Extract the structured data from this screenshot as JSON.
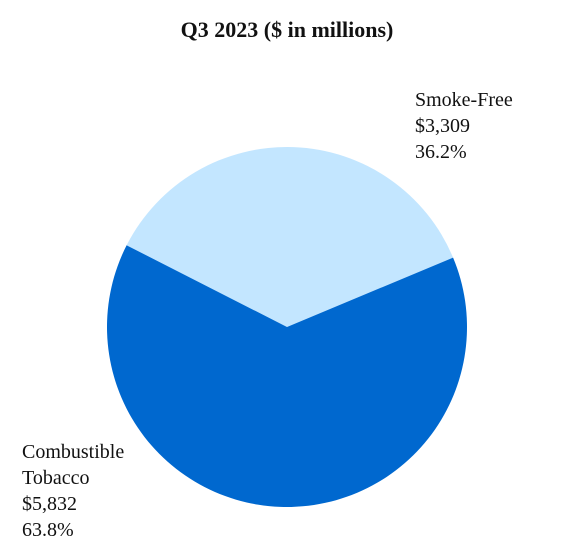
{
  "chart_data": {
    "type": "pie",
    "title": "Q3 2023 ($ in millions)",
    "categories": [
      "Smoke-Free",
      "Combustible Tobacco"
    ],
    "values": [
      3309,
      5832
    ],
    "value_labels": [
      "$3,309",
      "$5,832"
    ],
    "percent_labels": [
      "36.2%",
      "63.8%"
    ],
    "label_lines": [
      [
        "Smoke-Free",
        "$3,309",
        "36.2%"
      ],
      [
        "Combustible",
        "Tobacco",
        "$5,832",
        "63.8%"
      ]
    ],
    "colors": [
      "#C3E6FF",
      "#0068CF"
    ],
    "legend": "none"
  }
}
